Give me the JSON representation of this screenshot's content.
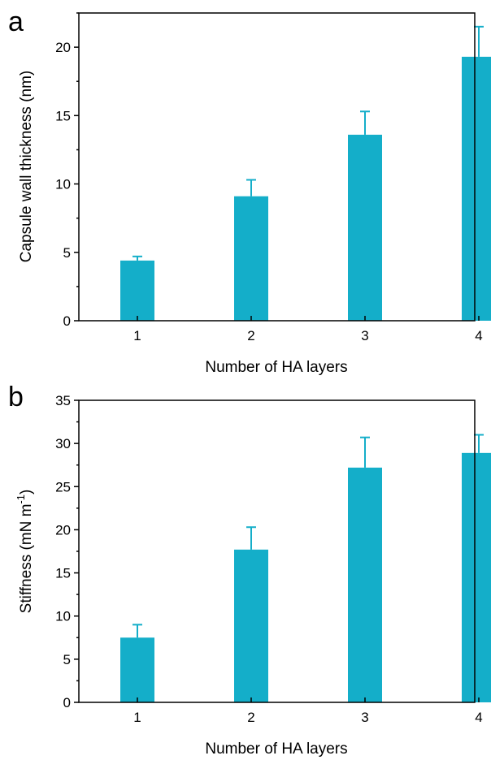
{
  "chart_data": [
    {
      "type": "bar",
      "panel_label": "a",
      "categories": [
        "1",
        "2",
        "3",
        "4"
      ],
      "values": [
        4.4,
        9.1,
        13.6,
        19.3
      ],
      "errors": [
        0.3,
        1.2,
        1.7,
        2.2
      ],
      "xlabel": "Number of HA layers",
      "ylabel": "Capsule wall thickness (nm)",
      "ylim": [
        0,
        22.5
      ],
      "yticks": [
        0,
        5,
        10,
        15,
        20
      ],
      "bar_color": "#14aec9",
      "grid": false,
      "legend": "none"
    },
    {
      "type": "bar",
      "panel_label": "b",
      "categories": [
        "1",
        "2",
        "3",
        "4"
      ],
      "values": [
        7.5,
        17.7,
        27.2,
        28.9
      ],
      "errors": [
        1.5,
        2.6,
        3.5,
        2.1
      ],
      "xlabel": "Number of HA layers",
      "ylabel_main": "Stiffness (mN m",
      "ylabel_sup": "-1",
      "ylabel_close": ")",
      "ylim": [
        0,
        35
      ],
      "yticks": [
        0,
        5,
        10,
        15,
        20,
        25,
        30,
        35
      ],
      "bar_color": "#14aec9",
      "grid": false,
      "legend": "none"
    }
  ]
}
